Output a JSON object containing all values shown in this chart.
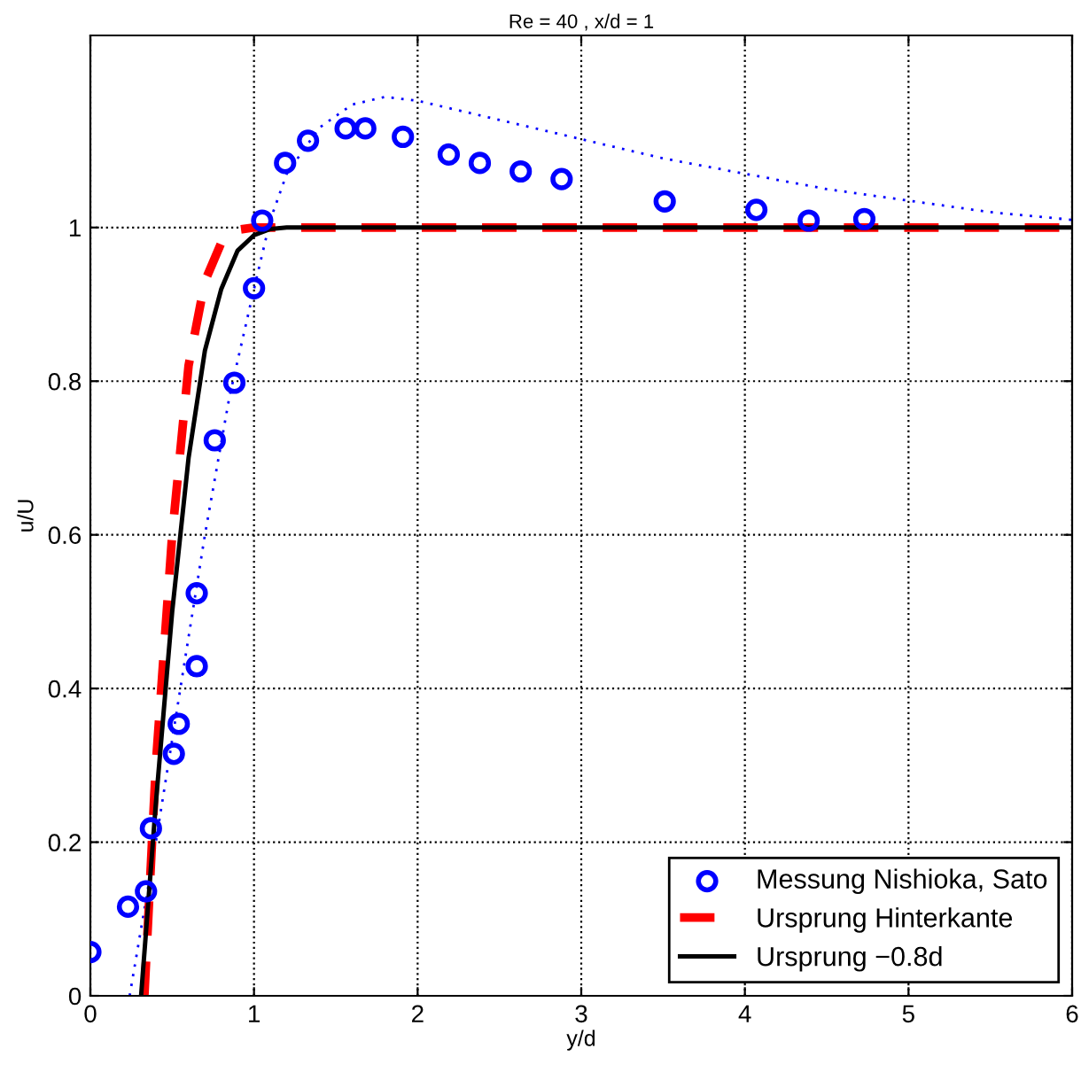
{
  "chart_data": {
    "type": "line",
    "title": "Re = 40 , x/d = 1",
    "xlabel": "y/d",
    "ylabel": "u/U",
    "xlim": [
      0,
      6
    ],
    "ylim": [
      0,
      1.25
    ],
    "xticks": [
      0,
      1,
      2,
      3,
      4,
      5,
      6
    ],
    "yticks": [
      0,
      0.2,
      0.4,
      0.6,
      0.8,
      1
    ],
    "grid": true,
    "legend": "bottom right",
    "series": [
      {
        "name": "Messung Nishioka, Sato",
        "type": "scatter",
        "marker": "circle",
        "color": "#0000ff",
        "x": [
          0,
          0.23,
          0.34,
          0.37,
          0.51,
          0.54,
          0.65,
          0.65,
          0.76,
          0.88,
          1.0,
          1.05,
          1.19,
          1.33,
          1.56,
          1.68,
          1.91,
          2.19,
          2.38,
          2.63,
          2.88,
          3.51,
          4.07,
          4.39,
          4.73
        ],
        "values": [
          0.057,
          0.116,
          0.136,
          0.218,
          0.315,
          0.354,
          0.429,
          0.524,
          0.723,
          0.798,
          0.921,
          1.009,
          1.084,
          1.113,
          1.129,
          1.129,
          1.118,
          1.095,
          1.084,
          1.073,
          1.063,
          1.034,
          1.023,
          1.009,
          1.011
        ]
      },
      {
        "line_style": "dotted",
        "color": "#0000ff",
        "x": [
          0.24,
          0.4,
          0.55,
          0.7,
          0.85,
          1.0,
          1.1,
          1.2,
          1.4,
          1.6,
          1.8,
          2.0,
          2.5,
          3.0,
          3.5,
          4.0,
          4.5,
          5.0,
          5.5,
          6.0
        ],
        "values": [
          0,
          0.2,
          0.4,
          0.6,
          0.78,
          0.92,
          1.01,
          1.07,
          1.13,
          1.16,
          1.17,
          1.165,
          1.14,
          1.115,
          1.09,
          1.07,
          1.05,
          1.035,
          1.02,
          1.01
        ]
      },
      {
        "name": "Ursprung Hinterkante",
        "line_style": "dashed",
        "color": "#ff0000",
        "x": [
          0.33,
          0.4,
          0.5,
          0.6,
          0.7,
          0.8,
          0.9,
          1.0,
          6.0
        ],
        "values": [
          0,
          0.3,
          0.6,
          0.82,
          0.93,
          0.98,
          0.997,
          1,
          1
        ]
      },
      {
        "name": "Ursprung −0.8d",
        "line_style": "solid",
        "color": "#000000",
        "x": [
          0.31,
          0.4,
          0.5,
          0.6,
          0.7,
          0.8,
          0.9,
          1.0,
          1.1,
          1.2,
          6.0
        ],
        "values": [
          0,
          0.25,
          0.5,
          0.7,
          0.84,
          0.92,
          0.97,
          0.99,
          0.998,
          1,
          1
        ]
      }
    ]
  }
}
